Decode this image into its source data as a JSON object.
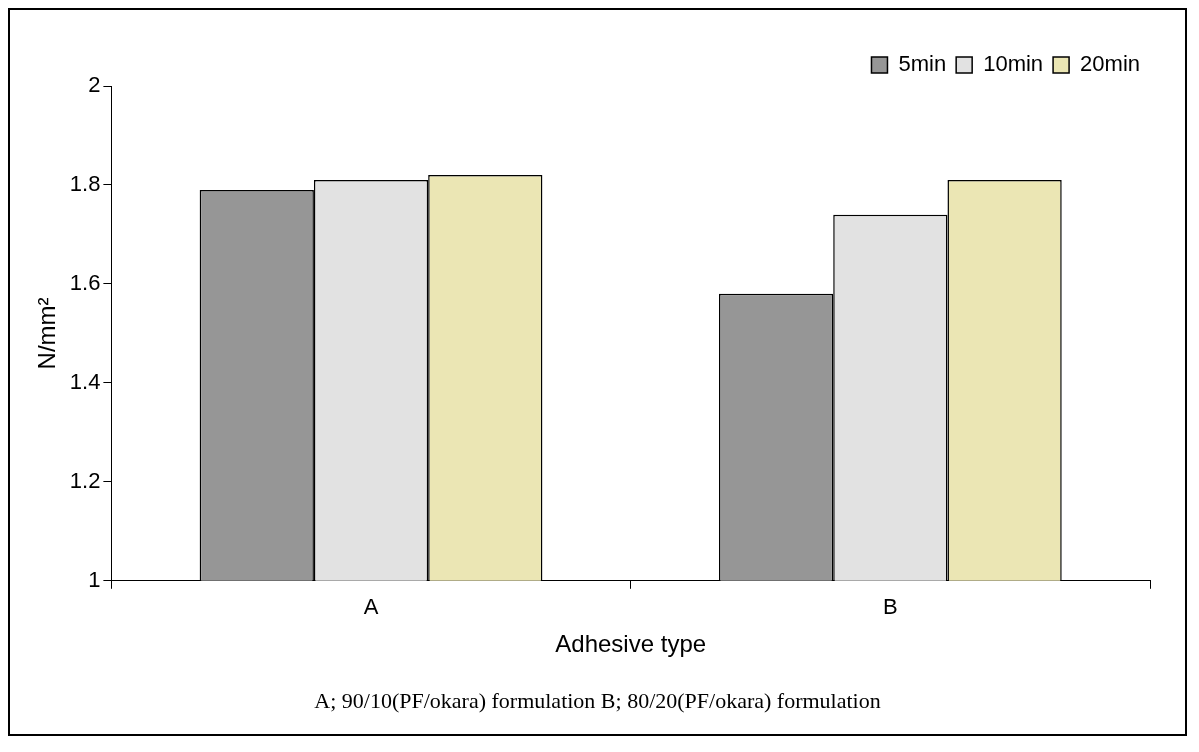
{
  "chart_data": {
    "type": "bar",
    "xlabel": "Adhesive type",
    "ylabel": "N/mm²",
    "categories": [
      "A",
      "B"
    ],
    "series": [
      {
        "name": "5min",
        "color": "#969696",
        "values": [
          1.79,
          1.58
        ]
      },
      {
        "name": "10min",
        "color": "#e2e2e2",
        "values": [
          1.81,
          1.74
        ]
      },
      {
        "name": "20min",
        "color": "#ebe6b4",
        "values": [
          1.82,
          1.81
        ]
      }
    ],
    "ylim": [
      1,
      2
    ],
    "yticks": [
      1,
      1.2,
      1.4,
      1.6,
      1.8,
      2
    ],
    "legend": "top right",
    "annotations": [
      "A; 90/10(PF/okara) formulation B; 80/20(PF/okara) formulation"
    ]
  }
}
